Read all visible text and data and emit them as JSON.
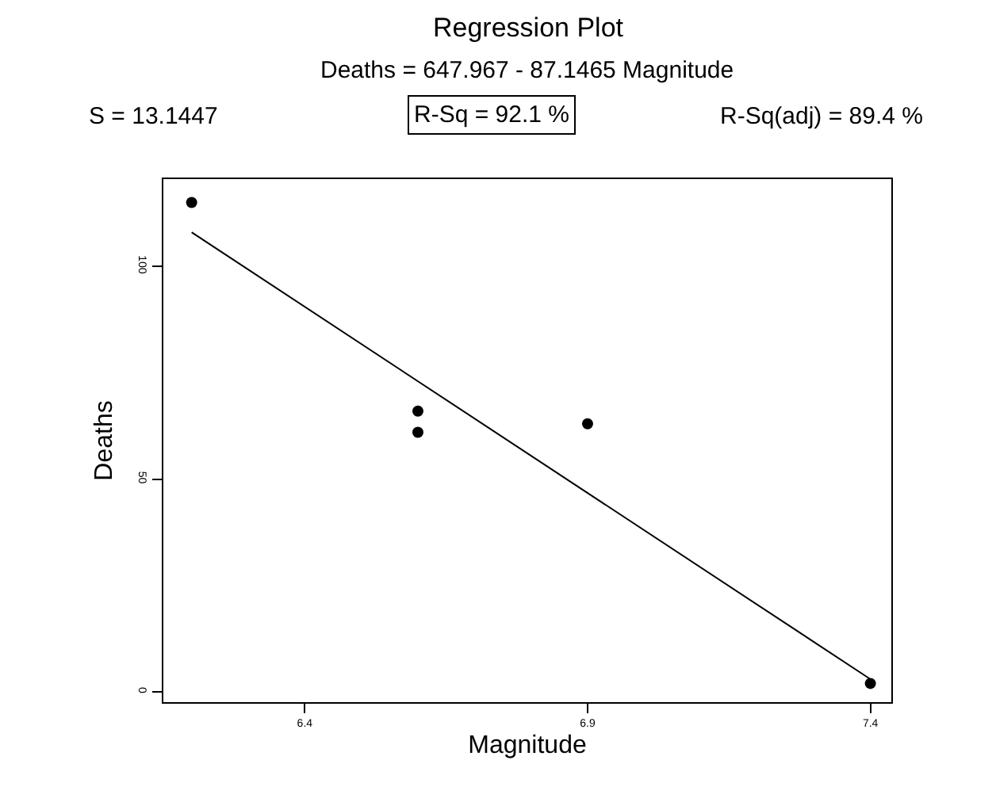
{
  "chart_data": {
    "type": "scatter",
    "title": "Regression Plot",
    "subtitle": "Deaths = 647.967 - 87.1465 Magnitude",
    "xlabel": "Magnitude",
    "ylabel": "Deaths",
    "annotations": [
      "S = 13.1447",
      "R-Sq = 92.1 %",
      "R-Sq(adj) = 89.4 %"
    ],
    "series": [
      {
        "color": "#000000",
        "x": [
          6.2,
          6.6,
          6.6,
          6.9,
          7.4
        ],
        "values": [
          115,
          66,
          61,
          63,
          2
        ]
      },
      {
        "type": "line",
        "marker": "none",
        "color": "#000000",
        "x": [
          6.2,
          7.4
        ],
        "values": [
          108,
          3
        ]
      }
    ],
    "xlim": [
      6.15,
      7.437
    ],
    "xticks": [
      6.4,
      6.9,
      7.4
    ],
    "ylim": [
      -2.4,
      120.5
    ],
    "yticks": [
      0,
      50,
      100
    ],
    "marker": "circle",
    "line_style": "solid"
  }
}
